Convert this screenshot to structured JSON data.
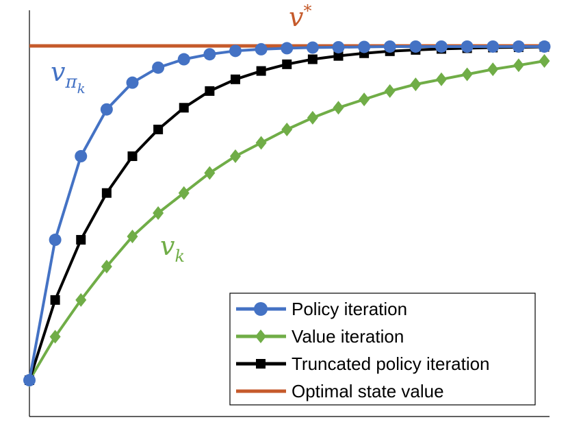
{
  "chart_data": {
    "type": "line",
    "title": "",
    "xlabel": "",
    "ylabel": "",
    "x": [
      0,
      1,
      2,
      3,
      4,
      5,
      6,
      7,
      8,
      9,
      10,
      11,
      12,
      13,
      14,
      15,
      16,
      17,
      18,
      19,
      20
    ],
    "xlim": [
      0,
      20.2
    ],
    "ylim": [
      0,
      1.05
    ],
    "grid": false,
    "legend_position": "bottom-right",
    "series": [
      {
        "name": "Policy iteration",
        "color": "#4472C4",
        "marker": "circle",
        "values": [
          0.0,
          0.42,
          0.67,
          0.81,
          0.89,
          0.935,
          0.96,
          0.975,
          0.985,
          0.99,
          0.993,
          0.995,
          0.996,
          0.997,
          0.998,
          0.998,
          0.998,
          0.998,
          0.998,
          0.998,
          0.998
        ]
      },
      {
        "name": "Value iteration",
        "color": "#70AD47",
        "marker": "diamond",
        "values": [
          0.0,
          0.13,
          0.24,
          0.34,
          0.43,
          0.5,
          0.56,
          0.62,
          0.67,
          0.71,
          0.75,
          0.785,
          0.815,
          0.84,
          0.865,
          0.885,
          0.9,
          0.915,
          0.93,
          0.942,
          0.955
        ]
      },
      {
        "name": "Truncated policy iteration",
        "color": "#000000",
        "marker": "square",
        "values": [
          0.0,
          0.24,
          0.42,
          0.56,
          0.67,
          0.75,
          0.815,
          0.865,
          0.9,
          0.925,
          0.945,
          0.96,
          0.97,
          0.978,
          0.984,
          0.988,
          0.991,
          0.993,
          0.995,
          0.996,
          0.997
        ]
      },
      {
        "name": "Optimal state value",
        "color": "#C55A2B",
        "marker": "none",
        "values": [
          1,
          1,
          1,
          1,
          1,
          1,
          1,
          1,
          1,
          1,
          1,
          1,
          1,
          1,
          1,
          1,
          1,
          1,
          1,
          1,
          1
        ]
      }
    ],
    "annotations": [
      {
        "id": "vstar",
        "base": "v",
        "sup": "*",
        "color": "#C55A2B"
      },
      {
        "id": "vpik",
        "base": "v",
        "sub": "π",
        "subsub": "k",
        "color": "#4472C4"
      },
      {
        "id": "vk",
        "base": "v",
        "sub": "k",
        "color": "#70AD47"
      }
    ]
  }
}
